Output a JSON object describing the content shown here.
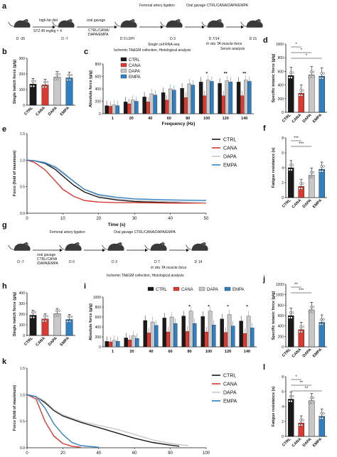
{
  "colors": {
    "CTRL": "#1a1a1a",
    "CANA": "#d93a32",
    "DAPA": "#c8c8c8",
    "EMPA": "#2f7fc1"
  },
  "groups": [
    "CTRL",
    "CANA",
    "DAPA",
    "EMPA"
  ],
  "panel_letters": {
    "a": "a",
    "b": "b",
    "c": "c",
    "d": "d",
    "e": "e",
    "f": "f",
    "g": "g",
    "h": "h",
    "i": "i",
    "j": "j",
    "k": "k",
    "l": "l"
  },
  "timeline_a": {
    "days": [
      "D -35",
      "D -7",
      "D 0 LDPI",
      "D 3",
      "D 7/14",
      "D 21"
    ],
    "labels": {
      "diet": "high-fat diet",
      "stz": "STZ 40 mg/kg × 4",
      "oral_gavage": "oral gavage",
      "oral_gavage_groups": "CTRL/CANA/",
      "oral_gavage_groups2": "DAPA/EMPA",
      "ligation": "Femoral artery ligation",
      "oral_gavage_all": "Oral gavage CTRL/CANA/DAPA/EMPA",
      "scrnaseq": "Single cell RNA-seq",
      "collection": "Ischemic TA&GM collection, Histological analysis",
      "insitu": "In situ TA muscle force",
      "serum": "Serum analysis"
    }
  },
  "timeline_g": {
    "days": [
      "D -7",
      "D 0",
      "D 3",
      "D 7",
      "D 14"
    ],
    "labels": {
      "ligation": "Femoral artery ligation",
      "oral_gavage_all": "Oral gavage CTRL/CANA/DAPA/EMPA",
      "oral_gavage": "oral gavage",
      "groups1": "CTRL/CANA",
      "groups2": "/DAPA/EMPA",
      "collection": "Ischemic TA&GM collection, Histological analysis",
      "insitu": "In situ TA muscle force"
    }
  },
  "chart_data": [
    {
      "panel": "b",
      "type": "bar",
      "ylabel": "Single twitch force (g/g)",
      "categories": [
        "CTRL",
        "CANA",
        "DAPA",
        "EMPA"
      ],
      "values": [
        135,
        130,
        180,
        175
      ],
      "ylim": [
        0,
        300
      ],
      "yticks": [
        "0",
        "100",
        "200",
        "300"
      ]
    },
    {
      "panel": "c",
      "type": "bar",
      "ylabel": "Absolute force (g/g)",
      "xlabel": "Frequency (Hz)",
      "categories": [
        "1",
        "20",
        "40",
        "60",
        "80",
        "100",
        "120",
        "140"
      ],
      "ylim": [
        0,
        800
      ],
      "yticks": [
        "0",
        "200",
        "400",
        "600",
        "800"
      ],
      "series": [
        {
          "name": "CTRL",
          "values": [
            130,
            190,
            270,
            340,
            410,
            510,
            490,
            510
          ]
        },
        {
          "name": "CANA",
          "values": [
            120,
            160,
            190,
            220,
            260,
            290,
            290,
            290
          ]
        },
        {
          "name": "DAPA",
          "values": [
            140,
            220,
            320,
            400,
            480,
            540,
            530,
            540
          ]
        },
        {
          "name": "EMPA",
          "values": [
            130,
            200,
            300,
            380,
            460,
            520,
            510,
            520
          ]
        }
      ],
      "annotations": [
        "*",
        "**",
        "**"
      ]
    },
    {
      "panel": "d",
      "type": "bar",
      "ylabel": "Specific tetanic force (g/g)",
      "categories": [
        "CTRL",
        "CANA",
        "DAPA",
        "EMPA"
      ],
      "values": [
        540,
        280,
        550,
        530
      ],
      "ylim": [
        0,
        1000
      ],
      "yticks": [
        "0",
        "200",
        "400",
        "600",
        "800",
        "1000"
      ],
      "annotations": [
        "*",
        "*",
        "*"
      ]
    },
    {
      "panel": "e",
      "type": "line",
      "ylabel": "Force (fold of maximum)",
      "xlabel": "Time (s)",
      "xlim": [
        0,
        50
      ],
      "ylim": [
        0,
        1.5
      ],
      "xticks": [
        "0",
        "10",
        "20",
        "30",
        "40",
        "50"
      ],
      "yticks": [
        "0.0",
        "0.5",
        "1.0",
        "1.5"
      ],
      "series": [
        {
          "name": "CTRL",
          "x": [
            0,
            2,
            5,
            8,
            10,
            13,
            16,
            20,
            25,
            30,
            40,
            50
          ],
          "y": [
            1.0,
            0.99,
            0.94,
            0.82,
            0.7,
            0.53,
            0.4,
            0.3,
            0.25,
            0.22,
            0.2,
            0.19
          ]
        },
        {
          "name": "CANA",
          "x": [
            0,
            2,
            5,
            8,
            10,
            13,
            16,
            20,
            25,
            30,
            40,
            50
          ],
          "y": [
            1.0,
            0.96,
            0.82,
            0.6,
            0.45,
            0.32,
            0.24,
            0.21,
            0.2,
            0.2,
            0.19,
            0.19
          ]
        },
        {
          "name": "DAPA",
          "x": [
            0,
            2,
            5,
            8,
            10,
            13,
            16,
            20,
            25,
            30,
            40,
            50
          ],
          "y": [
            1.0,
            0.99,
            0.96,
            0.88,
            0.78,
            0.6,
            0.45,
            0.33,
            0.27,
            0.24,
            0.22,
            0.2
          ]
        },
        {
          "name": "EMPA",
          "x": [
            0,
            2,
            5,
            8,
            10,
            13,
            16,
            20,
            25,
            30,
            40,
            50
          ],
          "y": [
            1.0,
            0.99,
            0.95,
            0.86,
            0.76,
            0.6,
            0.45,
            0.35,
            0.3,
            0.27,
            0.25,
            0.24
          ]
        }
      ]
    },
    {
      "panel": "f",
      "type": "bar",
      "ylabel": "Fatigue resistance (s)",
      "categories": [
        "CTRL",
        "CANA",
        "DAPA",
        "EMPA"
      ],
      "values": [
        4.0,
        1.5,
        3.0,
        3.8
      ],
      "ylim": [
        0,
        8
      ],
      "yticks": [
        "0",
        "2",
        "4",
        "6",
        "8"
      ],
      "annotations": [
        "***",
        "***"
      ]
    },
    {
      "panel": "h",
      "type": "bar",
      "ylabel": "Single twitch force (g/g)",
      "categories": [
        "CTRL",
        "CANA",
        "DAPA",
        "EMPA"
      ],
      "values": [
        190,
        155,
        205,
        150
      ],
      "ylim": [
        0,
        400
      ],
      "yticks": [
        "0",
        "100",
        "200",
        "300",
        "400"
      ]
    },
    {
      "panel": "i",
      "type": "bar",
      "ylabel": "Absolute force (g/g)",
      "categories": [
        "1",
        "20",
        "40",
        "60",
        "80",
        "100",
        "120",
        "140"
      ],
      "ylim": [
        0,
        1000
      ],
      "yticks": [
        "0",
        "200",
        "400",
        "600",
        "800",
        "1000"
      ],
      "series": [
        {
          "name": "CTRL",
          "values": [
            110,
            180,
            530,
            580,
            620,
            610,
            560,
            520
          ]
        },
        {
          "name": "CANA",
          "values": [
            100,
            140,
            280,
            300,
            310,
            300,
            290,
            270
          ]
        },
        {
          "name": "DAPA",
          "values": [
            130,
            220,
            500,
            600,
            720,
            720,
            650,
            620
          ]
        },
        {
          "name": "EMPA",
          "values": [
            110,
            170,
            430,
            470,
            470,
            440,
            420,
            380
          ]
        }
      ],
      "annotations": [
        "*",
        "*",
        "*",
        "*"
      ]
    },
    {
      "panel": "j",
      "type": "bar",
      "ylabel": "Specific tetanic force (g/g)",
      "categories": [
        "CTRL",
        "CANA",
        "DAPA",
        "EMPA"
      ],
      "values": [
        600,
        330,
        710,
        470
      ],
      "ylim": [
        0,
        1200
      ],
      "yticks": [
        "0",
        "200",
        "400",
        "600",
        "800",
        "1000",
        "1200"
      ],
      "annotations": [
        "**",
        "***"
      ]
    },
    {
      "panel": "k",
      "type": "line",
      "ylabel": "Force (fold of maximum)",
      "xlabel": "Time (s)",
      "xlim": [
        0,
        100
      ],
      "ylim": [
        0,
        1.5
      ],
      "xticks": [
        "0",
        "20",
        "40",
        "60",
        "80",
        "100"
      ],
      "yticks": [
        "0.0",
        "0.5",
        "1.0",
        "1.5"
      ],
      "series": [
        {
          "name": "CTRL",
          "x": [
            0,
            5,
            10,
            15,
            20,
            30,
            40,
            50,
            60,
            70,
            80,
            85
          ],
          "y": [
            1.0,
            0.97,
            0.85,
            0.7,
            0.6,
            0.48,
            0.38,
            0.28,
            0.18,
            0.1,
            0.05,
            0.03
          ]
        },
        {
          "name": "CANA",
          "x": [
            0,
            5,
            10,
            15,
            20,
            25,
            30
          ],
          "y": [
            1.0,
            0.92,
            0.5,
            0.22,
            0.08,
            0.03,
            0.01
          ]
        },
        {
          "name": "DAPA",
          "x": [
            0,
            5,
            10,
            15,
            20,
            30,
            40,
            50,
            60,
            70,
            80,
            90
          ],
          "y": [
            1.0,
            0.97,
            0.88,
            0.72,
            0.62,
            0.5,
            0.42,
            0.35,
            0.25,
            0.15,
            0.08,
            0.04
          ]
        },
        {
          "name": "EMPA",
          "x": [
            0,
            5,
            10,
            15,
            20,
            25,
            30,
            40
          ],
          "y": [
            1.0,
            0.96,
            0.75,
            0.45,
            0.25,
            0.1,
            0.04,
            0.01
          ]
        }
      ]
    },
    {
      "panel": "l",
      "type": "bar",
      "ylabel": "Fatigue resistance (s)",
      "categories": [
        "CTRL",
        "CANA",
        "DAPA",
        "EMPA"
      ],
      "values": [
        5.0,
        1.8,
        4.8,
        2.7
      ],
      "ylim": [
        0,
        8
      ],
      "yticks": [
        "0",
        "2",
        "4",
        "6",
        "8"
      ],
      "annotations": [
        "*",
        "**",
        "**"
      ]
    }
  ]
}
